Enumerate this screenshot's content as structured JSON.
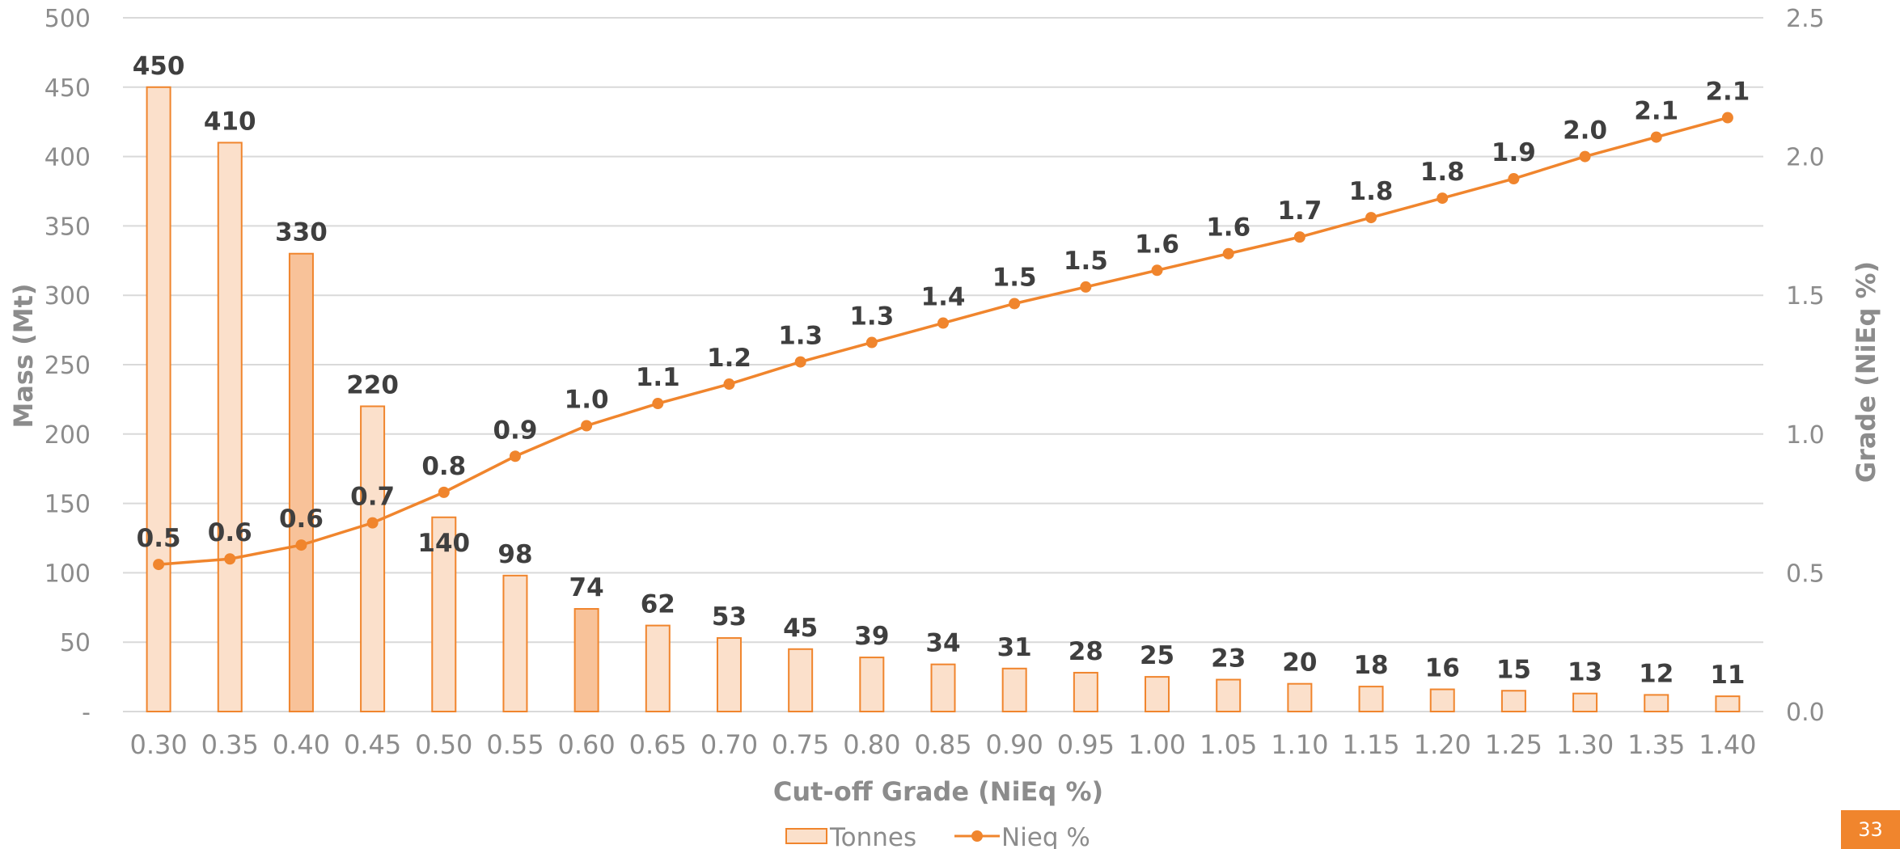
{
  "chart_data": {
    "type": "bar",
    "xlabel": "Cut-off Grade (NiEq %)",
    "ylabel": "Mass (Mt)",
    "y2label": "Grade (NiEq %)",
    "categories": [
      "0.30",
      "0.35",
      "0.40",
      "0.45",
      "0.50",
      "0.55",
      "0.60",
      "0.65",
      "0.70",
      "0.75",
      "0.80",
      "0.85",
      "0.90",
      "0.95",
      "1.00",
      "1.05",
      "1.10",
      "1.15",
      "1.20",
      "1.25",
      "1.30",
      "1.35",
      "1.40"
    ],
    "series": [
      {
        "name": "Tonnes",
        "type": "bar",
        "axis": "left",
        "values": [
          450,
          410,
          330,
          220,
          140,
          98,
          74,
          62,
          53,
          45,
          39,
          34,
          31,
          28,
          25,
          23,
          20,
          18,
          16,
          15,
          13,
          12,
          11
        ],
        "labels": [
          "450",
          "410",
          "330",
          "220",
          "140",
          "98",
          "74",
          "62",
          "53",
          "45",
          "39",
          "34",
          "31",
          "28",
          "25",
          "23",
          "20",
          "18",
          "16",
          "15",
          "13",
          "12",
          "11"
        ],
        "highlighted": [
          "0.40",
          "0.60"
        ]
      },
      {
        "name": "Nieq %",
        "type": "line",
        "axis": "right",
        "values": [
          0.53,
          0.55,
          0.6,
          0.68,
          0.79,
          0.92,
          1.03,
          1.11,
          1.18,
          1.26,
          1.33,
          1.4,
          1.47,
          1.53,
          1.59,
          1.65,
          1.71,
          1.78,
          1.85,
          1.92,
          2.0,
          2.07,
          2.14
        ],
        "labels": [
          "0.5",
          "0.6",
          "0.6",
          "0.7",
          "0.8",
          "0.9",
          "1.0",
          "1.1",
          "1.2",
          "1.3",
          "1.3",
          "1.4",
          "1.5",
          "1.5",
          "1.6",
          "1.6",
          "1.7",
          "1.8",
          "1.8",
          "1.9",
          "2.0",
          "2.1",
          "2.1"
        ]
      }
    ],
    "ylim": [
      0,
      500
    ],
    "y2lim": [
      0,
      2.5
    ],
    "yticks": [
      0,
      50,
      100,
      150,
      200,
      250,
      300,
      350,
      400,
      450,
      500
    ],
    "ytick_labels": [
      "-",
      "50",
      "100",
      "150",
      "200",
      "250",
      "300",
      "350",
      "400",
      "450",
      "500"
    ],
    "y2ticks": [
      0,
      0.5,
      1,
      1.5,
      2,
      2.5
    ],
    "y2tick_labels": [
      "0.0",
      "0.5",
      "1.0",
      "1.5",
      "2.0",
      "2.5"
    ],
    "grid": true,
    "legend_position": "bottom-center"
  },
  "colors": {
    "accent": "#f0852d",
    "bar_fill": "#fbe0cb",
    "bar_fill_highlight": "#f8c299",
    "grid": "#d9d9d9",
    "axis_text": "#8c8c8c",
    "label_text": "#3f3f3f"
  },
  "page_number": "33"
}
